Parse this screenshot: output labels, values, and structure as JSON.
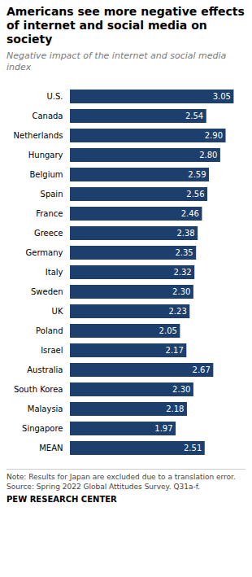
{
  "chart_data": {
    "type": "bar",
    "orientation": "horizontal",
    "title": "Americans see more negative effects\nof internet and social media on\nsociety",
    "subtitle": "Negative impact of the internet and social media\nindex",
    "annotations": [
      "Note: Results for Japan are excluded due to a translation error.\nSource: Spring 2022 Global Attitudes Survey. Q31a-f.",
      "PEW RESEARCH CENTER"
    ],
    "categories": [
      "U.S.",
      "Canada",
      "Netherlands",
      "Hungary",
      "Belgium",
      "Spain",
      "France",
      "Greece",
      "Germany",
      "Italy",
      "Sweden",
      "UK",
      "Poland",
      "Israel",
      "Australia",
      "South Korea",
      "Malaysia",
      "Singapore",
      "MEAN"
    ],
    "values": [
      3.05,
      2.54,
      2.9,
      2.8,
      2.59,
      2.56,
      2.46,
      2.38,
      2.35,
      2.32,
      2.3,
      2.23,
      2.05,
      2.17,
      2.67,
      2.3,
      2.18,
      1.97,
      2.51
    ],
    "value_labels": [
      "3.05",
      "2.54",
      "2.90",
      "2.80",
      "2.59",
      "2.56",
      "2.46",
      "2.38",
      "2.35",
      "2.32",
      "2.30",
      "2.23",
      "2.05",
      "2.17",
      "2.67",
      "2.30",
      "2.18",
      "1.97",
      "2.51"
    ],
    "color": "#1c3f6e",
    "xlim": [
      0,
      3.18
    ],
    "data_labels": true,
    "tick_labels": "y",
    "grid": false
  }
}
